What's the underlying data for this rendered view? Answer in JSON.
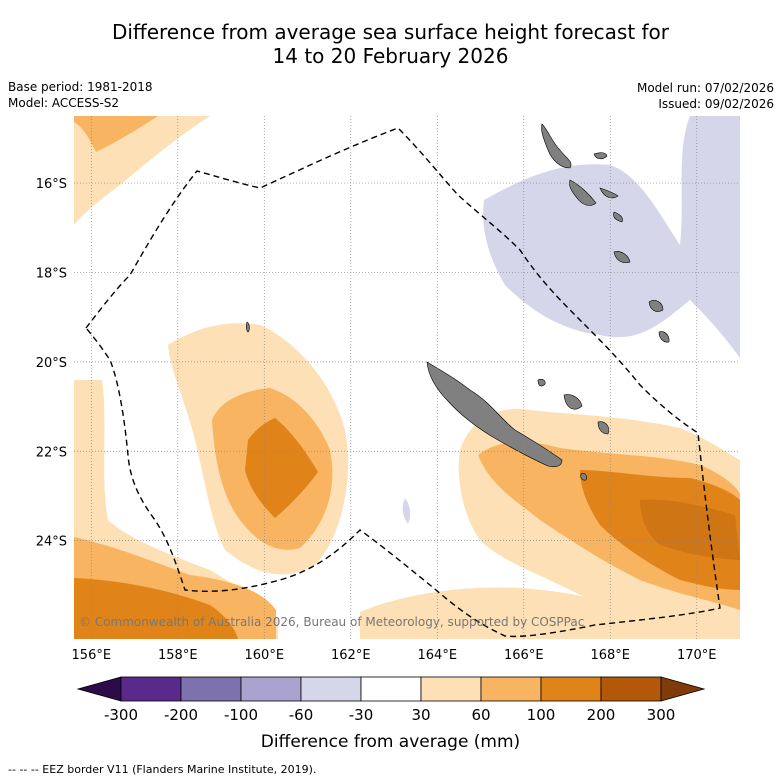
{
  "title": {
    "line1": "Difference from average sea surface height forecast for",
    "line2": "14 to 20 February 2026"
  },
  "meta": {
    "base_period": "Base period: 1981-2018",
    "model": "Model: ACCESS-S2",
    "model_run": "Model run: 07/02/2026",
    "issued": "Issued: 09/02/2026"
  },
  "map": {
    "lon_range": [
      155.6,
      171.0
    ],
    "lat_range": [
      -26.2,
      -14.5
    ],
    "lon_ticks": [
      "156°E",
      "158°E",
      "160°E",
      "162°E",
      "164°E",
      "166°E",
      "168°E",
      "170°E"
    ],
    "lon_tick_values": [
      156,
      158,
      160,
      162,
      164,
      166,
      168,
      170
    ],
    "lat_ticks": [
      "16°S",
      "18°S",
      "20°S",
      "22°S",
      "24°S"
    ],
    "lat_tick_values": [
      -16,
      -18,
      -20,
      -22,
      -24
    ],
    "copyright": "© Commonwealth of Australia 2026, Bureau of Meteorology, supported by COSPPac",
    "land_color": "#808080",
    "eez_line_color": "#000000"
  },
  "colorbar": {
    "tick_labels": [
      "-300",
      "-200",
      "-100",
      "-60",
      "-30",
      "30",
      "60",
      "100",
      "200",
      "300"
    ],
    "colors": [
      "#2d0a4a",
      "#5a2a8a",
      "#7d72ae",
      "#aaa3cf",
      "#d6d6ea",
      "#ffffff",
      "#fde0b5",
      "#f8b460",
      "#e0841a",
      "#b35808",
      "#7f3b08"
    ],
    "label": "Difference from average (mm)"
  },
  "footer": {
    "legend": "--  --  -- EEZ border V11 (Flanders Marine Institute, 2019)."
  }
}
